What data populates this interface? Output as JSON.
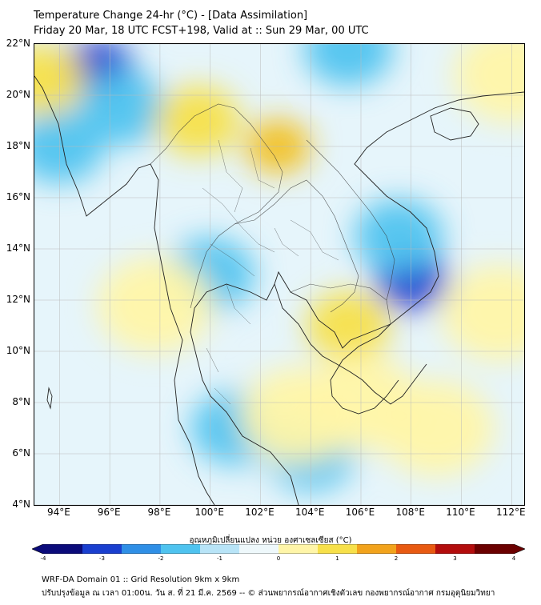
{
  "title": {
    "line1": "Temperature Change 24-hr (°C) - [Data Assimilation]",
    "line2": "Friday 20 Mar, 18 UTC FCST+198, Valid at :: Sun 29 Mar, 00 UTC"
  },
  "map": {
    "lat_ticks": [
      "22°N",
      "20°N",
      "18°N",
      "16°N",
      "14°N",
      "12°N",
      "10°N",
      "8°N",
      "6°N",
      "4°N"
    ],
    "lon_ticks": [
      "94°E",
      "96°E",
      "98°E",
      "100°E",
      "102°E",
      "104°E",
      "106°E",
      "108°E",
      "110°E",
      "112°E"
    ],
    "lat_range": [
      4,
      22
    ],
    "lon_range": [
      93,
      112.5
    ],
    "field_colors": {
      "cold_strong": "#1a3fcf",
      "cold": "#4fc3ef",
      "cool": "#b8e4f7",
      "neutral": "#eef8fb",
      "warm": "#fff5a8",
      "warmer": "#f7e04a",
      "hot": "#f2c01c"
    },
    "anomalies": [
      {
        "lon": 95.5,
        "lat": 21.0,
        "kind": "cold_strong"
      },
      {
        "lon": 96.5,
        "lat": 19.5,
        "kind": "cold"
      },
      {
        "lon": 94.0,
        "lat": 18.0,
        "kind": "cold"
      },
      {
        "lon": 105.5,
        "lat": 21.8,
        "kind": "cold"
      },
      {
        "lon": 108.0,
        "lat": 12.8,
        "kind": "cold_strong"
      },
      {
        "lon": 107.5,
        "lat": 14.5,
        "kind": "cold"
      },
      {
        "lon": 101.0,
        "lat": 7.0,
        "kind": "cold"
      },
      {
        "lon": 104.0,
        "lat": 6.0,
        "kind": "cold"
      },
      {
        "lon": 100.0,
        "lat": 13.0,
        "kind": "cold"
      },
      {
        "lon": 102.7,
        "lat": 18.0,
        "kind": "hot"
      },
      {
        "lon": 99.5,
        "lat": 19.0,
        "kind": "warmer"
      },
      {
        "lon": 105.5,
        "lat": 11.0,
        "kind": "warmer"
      },
      {
        "lon": 97.8,
        "lat": 11.8,
        "kind": "warm"
      },
      {
        "lon": 103.5,
        "lat": 7.5,
        "kind": "warm"
      },
      {
        "lon": 109.0,
        "lat": 7.0,
        "kind": "warm"
      },
      {
        "lon": 111.5,
        "lat": 11.5,
        "kind": "warm"
      },
      {
        "lon": 112.0,
        "lat": 20.8,
        "kind": "warm"
      },
      {
        "lon": 93.3,
        "lat": 20.6,
        "kind": "warmer"
      },
      {
        "lon": 106.0,
        "lat": 8.0,
        "kind": "warm"
      }
    ]
  },
  "colorbar": {
    "label": "อุณหภูมิเปลี่ยนแปลง หน่วย องศาเซลเซียส (°C)",
    "ticks": [
      "-4",
      "-3",
      "-2",
      "-1",
      "0",
      "1",
      "2",
      "3",
      "4"
    ],
    "min": -4,
    "max": 4,
    "colors": [
      "#0b0b7a",
      "#1a3fcf",
      "#2f8fe6",
      "#4fc3ef",
      "#b8e4f7",
      "#eef8fb",
      "#fff5a8",
      "#f7e04a",
      "#f2a31c",
      "#e85a12",
      "#b30d0d",
      "#6b0000"
    ]
  },
  "footer": {
    "line1": "WRF-DA Domain 01 :: Grid Resolution 9km x 9km",
    "line2": "ปรับปรุงข้อมูล ณ เวลา 01:00น. วัน ส. ที่ 21 มี.ค. 2569 -- © ส่วนพยากรณ์อากาศเชิงตัวเลข กองพยากรณ์อากาศ กรมอุตุนิยมวิทยา"
  }
}
